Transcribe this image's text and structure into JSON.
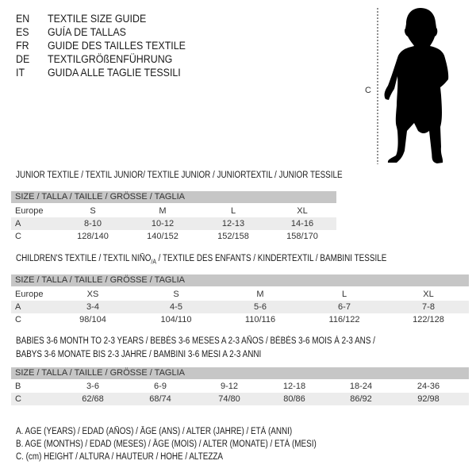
{
  "languages": [
    {
      "code": "EN",
      "text": "TEXTILE SIZE GUIDE"
    },
    {
      "code": "ES",
      "text": "GUÍA DE TALLAS"
    },
    {
      "code": "FR",
      "text": "GUIDE DES TAILLES TEXTILE"
    },
    {
      "code": "DE",
      "text": "TEXTILGRÖßENFÜHRUNG"
    },
    {
      "code": "IT",
      "text": "GUIDA ALLE TAGLIE TESSILI"
    }
  ],
  "figure": {
    "measure_label": "C",
    "icon": "child-silhouette"
  },
  "junior": {
    "title": "JUNIOR TEXTILE / TEXTIL JUNIOR/ TEXTILE JUNIOR / JUNIORTEXTIL / JUNIOR TESSILE",
    "header": "SIZE / TALLA / TAILLE / GRÖSSE / TAGLIA",
    "rows": [
      {
        "label": "Europe",
        "cells": [
          "S",
          "M",
          "L",
          "XL"
        ]
      },
      {
        "label": "A",
        "cells": [
          "8-10",
          "10-12",
          "12-13",
          "14-16"
        ]
      },
      {
        "label": "C",
        "cells": [
          "128/140",
          "140/152",
          "152/158",
          "158/170"
        ]
      }
    ]
  },
  "children": {
    "title_a": "CHILDREN'S TEXTILE / TEXTIL NIÑO",
    "title_sub": "/A",
    "title_b": " / TEXTILE DES ENFANTS / KINDERTEXTIL / BAMBINI TESSILE",
    "header": "SIZE / TALLA / TAILLE / GRÖSSE / TAGLIA",
    "rows": [
      {
        "label": "Europe",
        "cells": [
          "XS",
          "S",
          "M",
          "L",
          "XL"
        ]
      },
      {
        "label": "A",
        "cells": [
          "3-4",
          "4-5",
          "5-6",
          "6-7",
          "7-8"
        ]
      },
      {
        "label": "C",
        "cells": [
          "98/104",
          "104/110",
          "110/116",
          "116/122",
          "122/128"
        ]
      }
    ]
  },
  "babies": {
    "title_line1": "BABIES 3-6 MONTH TO 2-3 YEARS / BEBÉS 3-6 MESES A 2-3 AÑOS / BÉBÉS 3-6 MOIS À 2-3 ANS /",
    "title_line2": "BABYS 3-6 MONATE BIS 2-3 JAHRE / BAMBINI 3-6 MESI A 2-3 ANNI",
    "header": "SIZE / TALLA / TAILLE / GRÖSSE / TAGLIA",
    "rows": [
      {
        "label": "B",
        "cells": [
          "3-6",
          "6-9",
          "9-12",
          "12-18",
          "18-24",
          "24-36"
        ]
      },
      {
        "label": "C",
        "cells": [
          "62/68",
          "68/74",
          "74/80",
          "80/86",
          "86/92",
          "92/98"
        ]
      }
    ]
  },
  "legend": [
    "A. AGE (YEARS) / EDAD (AÑOS) / ÂGE (ANS) / ALTER (JAHRE) / ETÀ (ANNI)",
    "B. AGE (MONTHS) / EDAD (MESES) / ÂGE (MOIS) / ALTER (MONATE) / ETÀ (MESI)",
    "C. (cm) HEIGHT / ALTURA / HAUTEUR / HÖHE / ALTEZZA"
  ]
}
